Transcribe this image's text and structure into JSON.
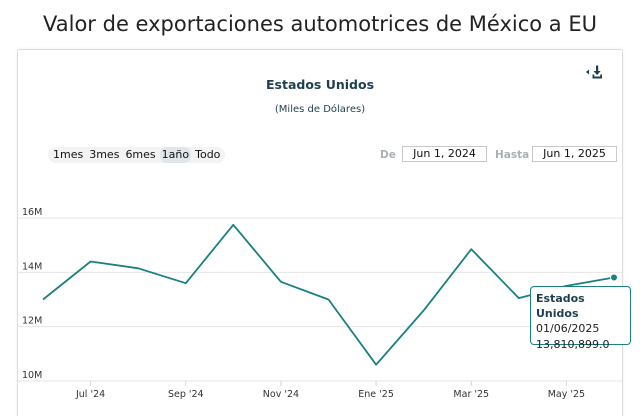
{
  "page": {
    "title": "Valor de exportaciones automotrices de México a EU"
  },
  "chart": {
    "title": "Estados Unidos",
    "subtitle": "(Miles de Dólares)",
    "range_buttons": [
      {
        "label": "1mes"
      },
      {
        "label": "3mes"
      },
      {
        "label": "6mes"
      },
      {
        "label": "1año"
      },
      {
        "label": "Todo"
      }
    ],
    "date_from_label": "De",
    "date_from_value": "Jun 1, 2024",
    "date_to_label": "Hasta",
    "date_to_value": "Jun 1, 2025",
    "tooltip": {
      "series": "Estados Unidos",
      "date": "01/06/2025",
      "value": "13,810,899.0"
    },
    "menu_icon": "download-icon",
    "accent_color": "#1a8080"
  },
  "chart_data": {
    "type": "line",
    "title": "Estados Unidos",
    "subtitle": "(Miles de Dólares)",
    "xlabel": "",
    "ylabel": "",
    "x": [
      "2024-06",
      "2024-07",
      "2024-08",
      "2024-09",
      "2024-10",
      "2024-11",
      "2024-12",
      "2025-01",
      "2025-02",
      "2025-03",
      "2025-04",
      "2025-05",
      "2025-06"
    ],
    "x_tick_labels": [
      "Jul '24",
      "Sep '24",
      "Nov '24",
      "Ene '25",
      "Mar '25",
      "May '25"
    ],
    "x_tick_positions": [
      "2024-07",
      "2024-09",
      "2024-11",
      "2025-01",
      "2025-03",
      "2025-05"
    ],
    "y_tick_labels": [
      "10M",
      "12M",
      "14M",
      "16M"
    ],
    "y_tick_values": [
      10000000,
      12000000,
      14000000,
      16000000
    ],
    "series": [
      {
        "name": "Estados Unidos",
        "values": [
          13000000,
          14400000,
          14150000,
          13600000,
          15750000,
          13650000,
          13000000,
          10600000,
          12600000,
          14850000,
          13050000,
          13500000,
          13810899
        ]
      }
    ],
    "ylim": [
      10000000,
      16000000
    ],
    "grid": true,
    "color": "#1a8080"
  }
}
